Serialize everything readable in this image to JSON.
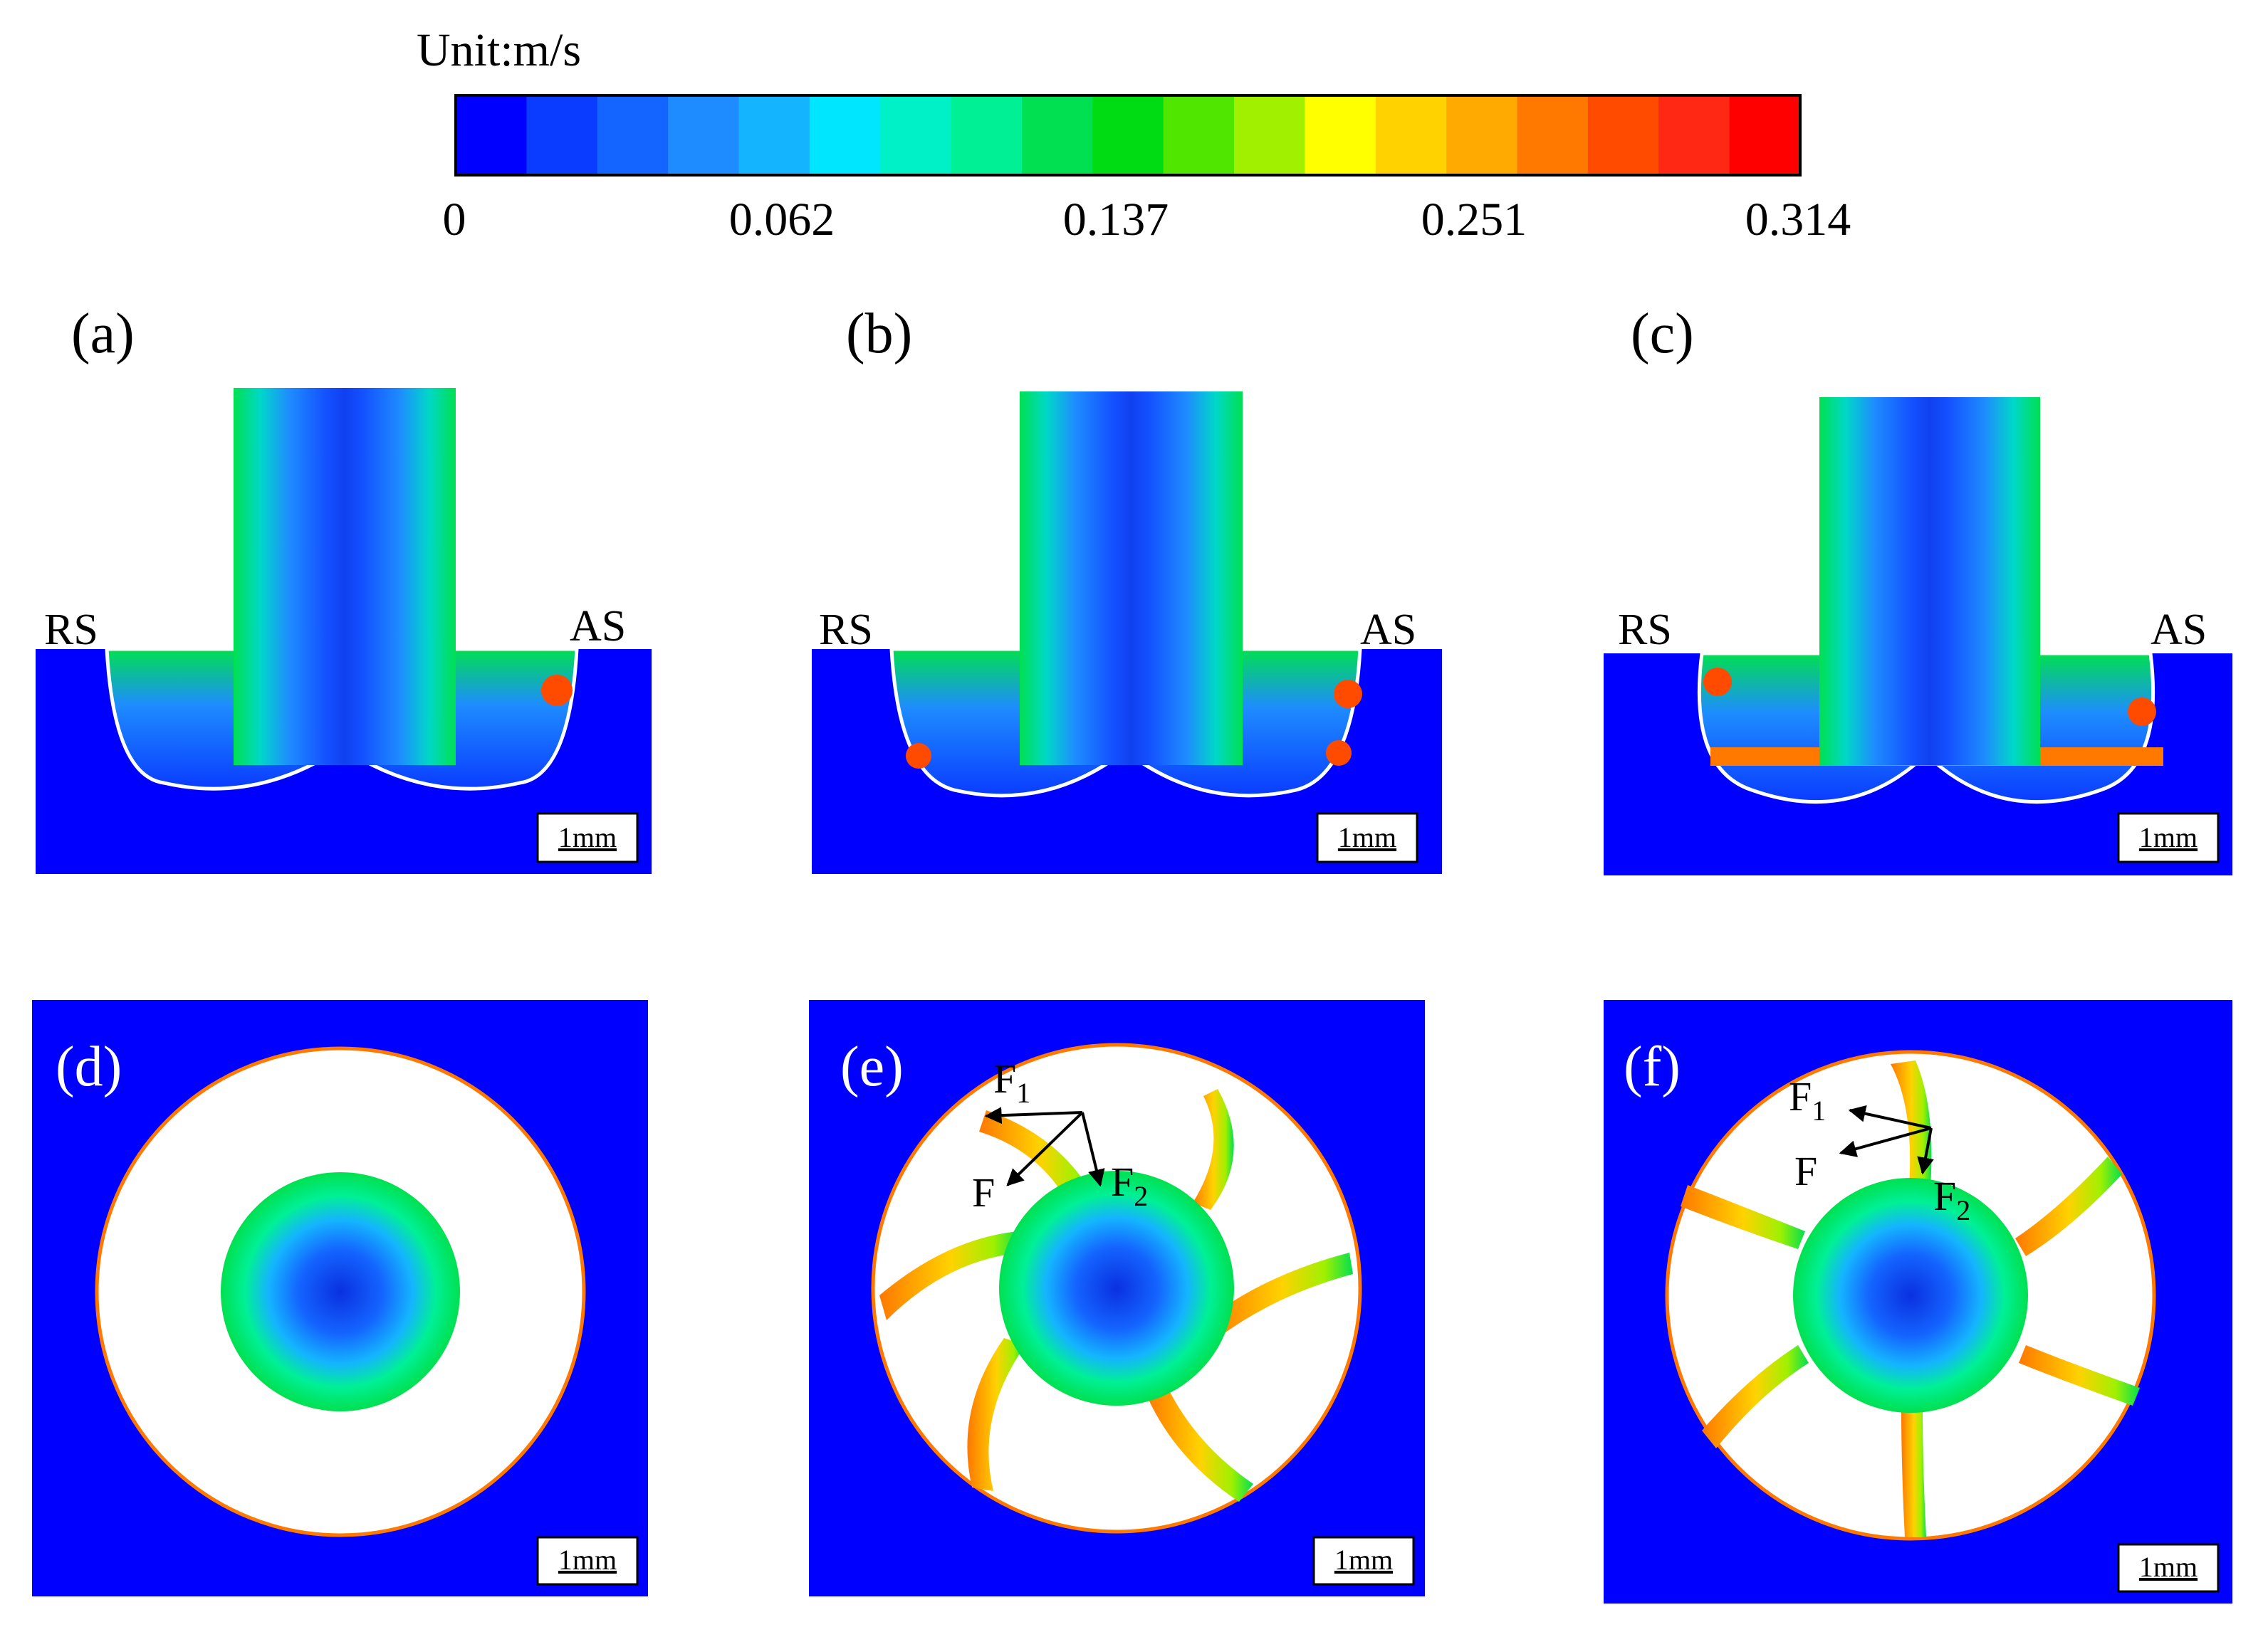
{
  "colorbar": {
    "unit_label": "Unit:m/s",
    "tick_labels": [
      "0",
      "0.062",
      "0.137",
      "0.251",
      "0.314"
    ],
    "colors": [
      "#0000ff",
      "#0a3cff",
      "#1464ff",
      "#1e8cff",
      "#14b4ff",
      "#00e6ff",
      "#00f0c8",
      "#00f096",
      "#00e050",
      "#00dc14",
      "#50e600",
      "#a0f000",
      "#ffff00",
      "#ffd200",
      "#ffaa00",
      "#ff7800",
      "#ff4b00",
      "#ff2814",
      "#ff0000"
    ]
  },
  "panels": {
    "a": {
      "label": "(a)",
      "left_side": "RS",
      "right_side": "AS",
      "scale": "1mm"
    },
    "b": {
      "label": "(b)",
      "left_side": "RS",
      "right_side": "AS",
      "scale": "1mm"
    },
    "c": {
      "label": "(c)",
      "left_side": "RS",
      "right_side": "AS",
      "scale": "1mm"
    },
    "d": {
      "label": "(d)",
      "scale": "1mm"
    },
    "e": {
      "label": "(e)",
      "scale": "1mm",
      "force_f1": "F",
      "force_f1_sub": "1",
      "force_f": "F",
      "force_f2": "F",
      "force_f2_sub": "2"
    },
    "f": {
      "label": "(f)",
      "scale": "1mm",
      "force_f1": "F",
      "force_f1_sub": "1",
      "force_f": "F",
      "force_f2": "F",
      "force_f2_sub": "2"
    }
  }
}
